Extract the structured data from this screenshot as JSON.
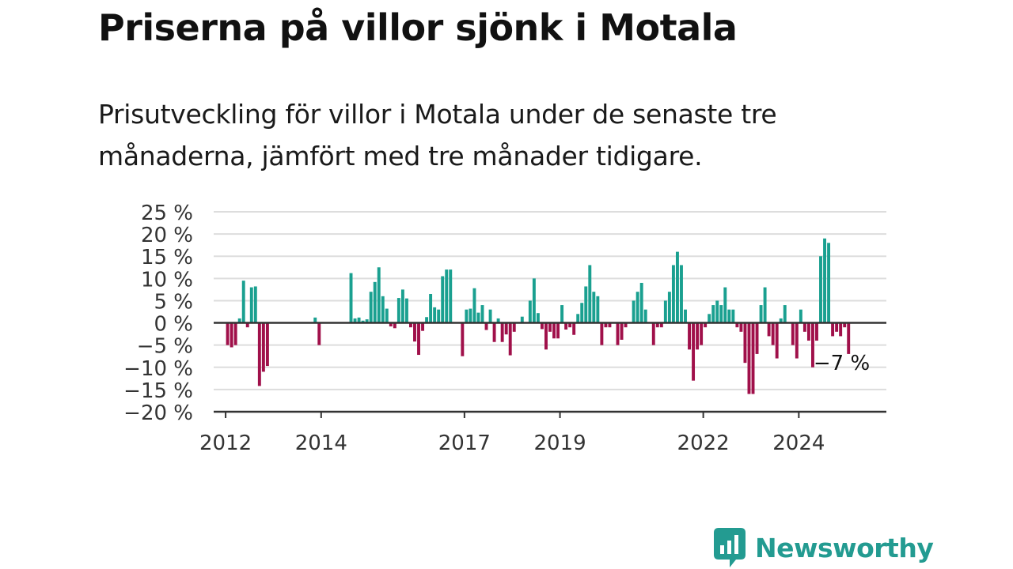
{
  "title": "Priserna på villor sjönk i Motala",
  "subtitle": "Prisutveckling för villor i Motala under de senaste tre månaderna, jämfört med tre månader tidigare.",
  "brand": {
    "name": "Newsworthy",
    "icon": "newsworthy-logo-icon"
  },
  "colors": {
    "positive": "#1aa090",
    "negative": "#a0104a",
    "grid": "#dddddd",
    "axis": "#333333",
    "tick_text": "#333333",
    "brand": "#239b91"
  },
  "chart_data": {
    "type": "bar",
    "title": "",
    "xlabel": "",
    "ylabel": "",
    "ylim": [
      -20,
      25
    ],
    "y_ticks": [
      25,
      20,
      15,
      10,
      5,
      0,
      -5,
      -10,
      -15,
      -20
    ],
    "y_tick_labels": [
      "25 %",
      "20 %",
      "15 %",
      "10 %",
      "5 %",
      "0 %",
      "−5 %",
      "−10 %",
      "−15 %",
      "−20 %"
    ],
    "x_ticks": [
      {
        "date": "2012-01",
        "label": "2012"
      },
      {
        "date": "2014-01",
        "label": "2014"
      },
      {
        "date": "2017-01",
        "label": "2017"
      },
      {
        "date": "2019-01",
        "label": "2019"
      },
      {
        "date": "2022-01",
        "label": "2022"
      },
      {
        "date": "2024-01",
        "label": "2024"
      }
    ],
    "xlim": [
      "2011-10",
      "2025-11"
    ],
    "grid": true,
    "annotation": {
      "text": "−7 %",
      "date": "2024-12",
      "value": -7
    },
    "series": [
      {
        "points": [
          {
            "x": "2012-01",
            "y": -5
          },
          {
            "x": "2012-02",
            "y": -5.5
          },
          {
            "x": "2012-03",
            "y": -5
          },
          {
            "x": "2012-04",
            "y": 1
          },
          {
            "x": "2012-05",
            "y": 9.5
          },
          {
            "x": "2012-06",
            "y": -1
          },
          {
            "x": "2012-07",
            "y": 8
          },
          {
            "x": "2012-08",
            "y": 8.2
          },
          {
            "x": "2012-09",
            "y": -14.2
          },
          {
            "x": "2012-10",
            "y": -11
          },
          {
            "x": "2012-11",
            "y": -9.7
          },
          {
            "x": "2013-11",
            "y": 1.2
          },
          {
            "x": "2013-12",
            "y": -5
          },
          {
            "x": "2014-08",
            "y": 11.2
          },
          {
            "x": "2014-09",
            "y": 1
          },
          {
            "x": "2014-10",
            "y": 1.2
          },
          {
            "x": "2014-11",
            "y": 0.5
          },
          {
            "x": "2014-12",
            "y": 0.8
          },
          {
            "x": "2015-01",
            "y": 7
          },
          {
            "x": "2015-02",
            "y": 9.2
          },
          {
            "x": "2015-03",
            "y": 12.5
          },
          {
            "x": "2015-04",
            "y": 6
          },
          {
            "x": "2015-05",
            "y": 3.2
          },
          {
            "x": "2015-06",
            "y": -0.8
          },
          {
            "x": "2015-07",
            "y": -1.2
          },
          {
            "x": "2015-08",
            "y": 5.6
          },
          {
            "x": "2015-09",
            "y": 7.5
          },
          {
            "x": "2015-10",
            "y": 5.5
          },
          {
            "x": "2015-11",
            "y": -1
          },
          {
            "x": "2015-12",
            "y": -4.2
          },
          {
            "x": "2016-01",
            "y": -7.2
          },
          {
            "x": "2016-02",
            "y": -1.8
          },
          {
            "x": "2016-03",
            "y": 1.3
          },
          {
            "x": "2016-04",
            "y": 6.5
          },
          {
            "x": "2016-05",
            "y": 3.5
          },
          {
            "x": "2016-06",
            "y": 3
          },
          {
            "x": "2016-07",
            "y": 10.5
          },
          {
            "x": "2016-08",
            "y": 12
          },
          {
            "x": "2016-09",
            "y": 12
          },
          {
            "x": "2016-12",
            "y": -7.5
          },
          {
            "x": "2017-01",
            "y": 3
          },
          {
            "x": "2017-02",
            "y": 3.2
          },
          {
            "x": "2017-03",
            "y": 7.8
          },
          {
            "x": "2017-04",
            "y": 2.3
          },
          {
            "x": "2017-05",
            "y": 4
          },
          {
            "x": "2017-06",
            "y": -1.6
          },
          {
            "x": "2017-07",
            "y": 3
          },
          {
            "x": "2017-08",
            "y": -4.3
          },
          {
            "x": "2017-09",
            "y": 1
          },
          {
            "x": "2017-10",
            "y": -4.3
          },
          {
            "x": "2017-11",
            "y": -2.6
          },
          {
            "x": "2017-12",
            "y": -7.3
          },
          {
            "x": "2018-01",
            "y": -2
          },
          {
            "x": "2018-03",
            "y": 1.4
          },
          {
            "x": "2018-05",
            "y": 5
          },
          {
            "x": "2018-06",
            "y": 10
          },
          {
            "x": "2018-07",
            "y": 2.2
          },
          {
            "x": "2018-08",
            "y": -1.4
          },
          {
            "x": "2018-09",
            "y": -6
          },
          {
            "x": "2018-10",
            "y": -2
          },
          {
            "x": "2018-11",
            "y": -3.5
          },
          {
            "x": "2018-12",
            "y": -3.5
          },
          {
            "x": "2019-01",
            "y": 4
          },
          {
            "x": "2019-02",
            "y": -1.5
          },
          {
            "x": "2019-03",
            "y": -1
          },
          {
            "x": "2019-04",
            "y": -2.7
          },
          {
            "x": "2019-05",
            "y": 2
          },
          {
            "x": "2019-06",
            "y": 4.5
          },
          {
            "x": "2019-07",
            "y": 8.2
          },
          {
            "x": "2019-08",
            "y": 13
          },
          {
            "x": "2019-09",
            "y": 7
          },
          {
            "x": "2019-10",
            "y": 6
          },
          {
            "x": "2019-11",
            "y": -5
          },
          {
            "x": "2019-12",
            "y": -1
          },
          {
            "x": "2020-01",
            "y": -1
          },
          {
            "x": "2020-03",
            "y": -5
          },
          {
            "x": "2020-04",
            "y": -3.8
          },
          {
            "x": "2020-05",
            "y": -1
          },
          {
            "x": "2020-07",
            "y": 5
          },
          {
            "x": "2020-08",
            "y": 7
          },
          {
            "x": "2020-09",
            "y": 9
          },
          {
            "x": "2020-10",
            "y": 3
          },
          {
            "x": "2020-12",
            "y": -5
          },
          {
            "x": "2021-01",
            "y": -1
          },
          {
            "x": "2021-02",
            "y": -1
          },
          {
            "x": "2021-03",
            "y": 5
          },
          {
            "x": "2021-04",
            "y": 7
          },
          {
            "x": "2021-05",
            "y": 13
          },
          {
            "x": "2021-06",
            "y": 16
          },
          {
            "x": "2021-07",
            "y": 13
          },
          {
            "x": "2021-08",
            "y": 3
          },
          {
            "x": "2021-09",
            "y": -6
          },
          {
            "x": "2021-10",
            "y": -13
          },
          {
            "x": "2021-11",
            "y": -6
          },
          {
            "x": "2021-12",
            "y": -5
          },
          {
            "x": "2022-01",
            "y": -1
          },
          {
            "x": "2022-02",
            "y": 2
          },
          {
            "x": "2022-03",
            "y": 4
          },
          {
            "x": "2022-04",
            "y": 5
          },
          {
            "x": "2022-05",
            "y": 4
          },
          {
            "x": "2022-06",
            "y": 8
          },
          {
            "x": "2022-07",
            "y": 3
          },
          {
            "x": "2022-08",
            "y": 3
          },
          {
            "x": "2022-09",
            "y": -1
          },
          {
            "x": "2022-10",
            "y": -2
          },
          {
            "x": "2022-11",
            "y": -9
          },
          {
            "x": "2022-12",
            "y": -16
          },
          {
            "x": "2023-01",
            "y": -16
          },
          {
            "x": "2023-02",
            "y": -7
          },
          {
            "x": "2023-03",
            "y": 4
          },
          {
            "x": "2023-04",
            "y": 8
          },
          {
            "x": "2023-05",
            "y": -3
          },
          {
            "x": "2023-06",
            "y": -5
          },
          {
            "x": "2023-07",
            "y": -8
          },
          {
            "x": "2023-08",
            "y": 1
          },
          {
            "x": "2023-09",
            "y": 4
          },
          {
            "x": "2023-11",
            "y": -5
          },
          {
            "x": "2023-12",
            "y": -8
          },
          {
            "x": "2024-01",
            "y": 3
          },
          {
            "x": "2024-02",
            "y": -2
          },
          {
            "x": "2024-03",
            "y": -4
          },
          {
            "x": "2024-04",
            "y": -10
          },
          {
            "x": "2024-05",
            "y": -4
          },
          {
            "x": "2024-06",
            "y": 15
          },
          {
            "x": "2024-07",
            "y": 19
          },
          {
            "x": "2024-08",
            "y": 18
          },
          {
            "x": "2024-09",
            "y": -3
          },
          {
            "x": "2024-10",
            "y": -2
          },
          {
            "x": "2024-11",
            "y": -3
          },
          {
            "x": "2024-12",
            "y": -1
          },
          {
            "x": "2025-01",
            "y": -7
          }
        ]
      }
    ]
  }
}
